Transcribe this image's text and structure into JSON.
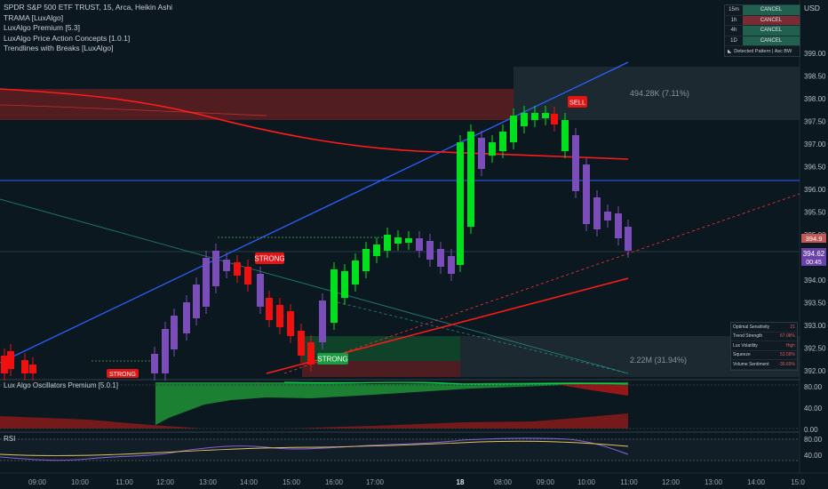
{
  "legend": {
    "symbol": "SPDR S&P 500 ETF TRUST, 15, Arca, Heikin Ashi",
    "indicators": [
      "TRAMA [LuxAlgo]",
      "LuxAlgo Premium [5.3]",
      "LuxAlgo Price Action Concepts [1.0.1]",
      "Trendlines with Breaks [LuxAlgo]"
    ]
  },
  "currency": "USD",
  "price_axis": [
    "399.00",
    "398.50",
    "398.00",
    "397.50",
    "397.00",
    "396.50",
    "396.00",
    "395.50",
    "395.00",
    "394.50",
    "394.00",
    "393.50",
    "393.00",
    "392.50",
    "392.00"
  ],
  "price_tags": {
    "last": "394.62",
    "countdown": "00:45",
    "marker": "394.9"
  },
  "mtf_table": {
    "rows": [
      {
        "tf": "15m",
        "signal": "CANCEL",
        "color": "#21604f"
      },
      {
        "tf": "1h",
        "signal": "CANCEL",
        "color": "#7a2b33"
      },
      {
        "tf": "4h",
        "signal": "CANCEL",
        "color": "#21604f"
      },
      {
        "tf": "1D",
        "signal": "CANCEL",
        "color": "#21604f"
      }
    ],
    "footer": "Detected Pattern | Asc BW"
  },
  "dashboard": {
    "rows": [
      {
        "name": "Optimal Sensitivity",
        "value": "21",
        "color": "#e05a5a"
      },
      {
        "name": "Trend Strength",
        "value": "67.08%",
        "color": "#e05a5a"
      },
      {
        "name": "Lux Volatility",
        "value": "High",
        "color": "#e05a5a"
      },
      {
        "name": "Squeeze",
        "value": "53.58%",
        "color": "#e05a5a"
      },
      {
        "name": "Volume Sentiment",
        "value": "-36.69%",
        "color": "#e05a5a"
      }
    ]
  },
  "annotations": {
    "range_top": "494.28K (7.11%)",
    "range_bottom": "2.22M (31.94%)",
    "sell": "SELL",
    "strong1": "STRONG",
    "strong2": "STRONG",
    "strong3": "STRONG"
  },
  "oscillator": {
    "title": "Lux Algo Oscillators Premium [5.0.1]",
    "axis": [
      "80.00",
      "40.00",
      "0.00"
    ]
  },
  "rsi": {
    "title": "RSI",
    "axis": [
      "80.00",
      "40.00"
    ]
  },
  "time_axis": [
    "09:00",
    "10:00",
    "11:00",
    "12:00",
    "13:00",
    "14:00",
    "15:00",
    "16:00",
    "17:00",
    "18",
    "08:00",
    "09:00",
    "10:00",
    "11:00",
    "12:00",
    "13:00",
    "14:00",
    "15:0"
  ],
  "colors": {
    "bull": "#00e01f",
    "bear": "#f01010",
    "bull_ha": "#1ccc2a",
    "bear_ha": "#7b4db8",
    "trend_blue": "#2962ff",
    "trama": "#ff1a1a"
  }
}
